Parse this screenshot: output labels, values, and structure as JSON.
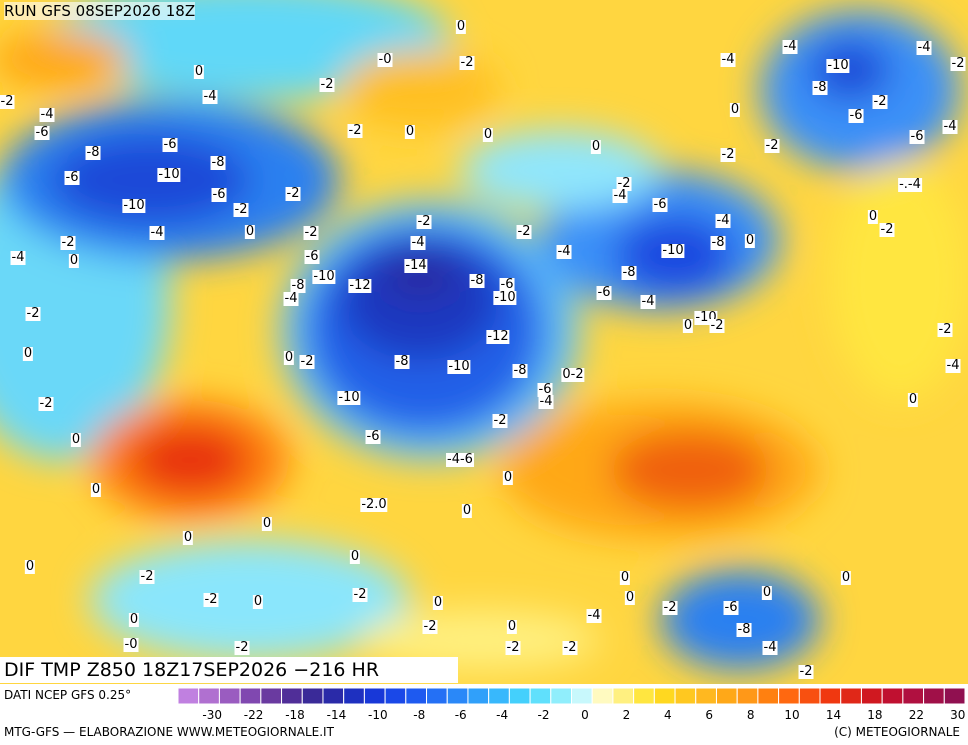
{
  "header": {
    "run": "RUN GFS 08SEP2026 18Z"
  },
  "title": "DIF TMP Z850 18Z17SEP2026 −216 HR",
  "source": "DATI NCEP GFS 0.25°",
  "footer_left": "MTG-GFS — ELABORAZIONE WWW.METEOGIORNALE.IT",
  "footer_right": "(C) METEOGIORNALE",
  "map_labels": [
    "0",
    "-0",
    "-2",
    "-2",
    "0",
    "-4",
    "-2",
    "-4",
    "-6",
    "-2",
    "0",
    "0",
    "-8",
    "-6",
    "-8",
    "-6",
    "-10",
    "-6",
    "-2",
    "-10",
    "-2",
    "-4",
    "0",
    "-2",
    "-2",
    "0",
    "-4",
    "-2",
    "-4",
    "-2",
    "-6",
    "-14",
    "-10",
    "-8",
    "-4",
    "-12",
    "-8",
    "-6",
    "-10",
    "-4",
    "-2",
    "-12",
    "0",
    "0",
    "-2",
    "-8",
    "-10",
    "-8",
    "0-2",
    "-6",
    "-4",
    "-2",
    "-10",
    "0",
    "-6",
    "-2",
    "-4-6",
    "0",
    "0",
    "-2.0",
    "0",
    "0",
    "0",
    "0",
    "0",
    "-2",
    "-2",
    "0",
    "-2",
    "0",
    "-2",
    "0",
    "0",
    "0",
    "-2",
    "-6",
    "0",
    "0",
    "-4",
    "-8",
    "-4",
    "-2",
    "-2",
    "-0",
    "-2",
    "-2",
    "0",
    "-4",
    "-10",
    "-4",
    "-2",
    "-4",
    "-8",
    "-2",
    "0",
    "-6",
    "-4",
    "-6",
    "-2",
    "-2",
    "0",
    "-2",
    "-4",
    "-6",
    "-.-4",
    "-4",
    "-8",
    "0",
    "0",
    "-2",
    "-10",
    "-8",
    "-6",
    "-4",
    "0",
    "-10",
    "-2",
    "-2",
    "-4",
    "0"
  ],
  "colorbar": {
    "colors": [
      "#c080e0",
      "#b070d0",
      "#9a5cc0",
      "#8048b0",
      "#6a3aa0",
      "#502e98",
      "#3a2a98",
      "#2a2aa8",
      "#1e30c0",
      "#1838d8",
      "#1a48e8",
      "#1e5af0",
      "#2470f5",
      "#2a88f8",
      "#30a0fa",
      "#38b8fc",
      "#44d0fc",
      "#60e0fc",
      "#90eefc",
      "#c8f8fc",
      "#fffac0",
      "#fff080",
      "#ffe640",
      "#ffd820",
      "#ffc820",
      "#ffb820",
      "#ffa818",
      "#ff9818",
      "#ff8010",
      "#ff6810",
      "#f85010",
      "#f03810",
      "#e02818",
      "#d01820",
      "#c01030",
      "#b01040",
      "#a01048",
      "#901050"
    ],
    "ticks": [
      -30,
      -22,
      -18,
      -14,
      -10,
      -8,
      -6,
      -4,
      -2,
      0,
      2,
      4,
      6,
      8,
      10,
      14,
      18,
      22,
      30
    ]
  }
}
